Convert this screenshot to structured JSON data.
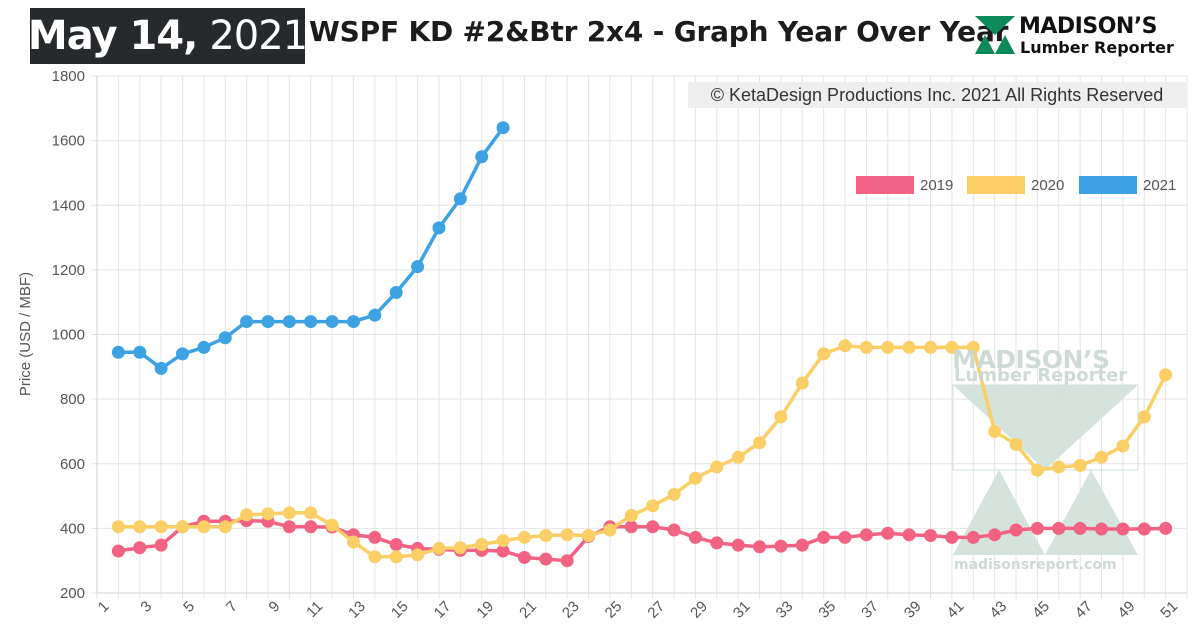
{
  "header": {
    "date_month_day": "May 14,",
    "date_year": "2021",
    "title": "WSPF KD #2&Btr 2x4 - Graph Year Over Year",
    "logo_name": "MADISON’S",
    "logo_sub": "Lumber Reporter"
  },
  "copyright": "© KetaDesign Productions Inc. 2021 All Rights Reserved",
  "watermark": {
    "name": "MADISON’S",
    "sub": "Lumber Reporter",
    "url": "madisonsreport.com"
  },
  "colors": {
    "2019": "#f36282",
    "2020": "#fbcf65",
    "2021": "#3da2e4",
    "grid": "#e4e4e4",
    "watermark": "#cfe0d8"
  },
  "chart_data": {
    "type": "line",
    "ylabel": "Price (USD / MBF)",
    "xlabel": "",
    "ylim": [
      200,
      1800
    ],
    "yticks": [
      200,
      400,
      600,
      800,
      1000,
      1200,
      1400,
      1600,
      1800
    ],
    "xlim": [
      1,
      52
    ],
    "xticks": [
      1,
      3,
      5,
      7,
      9,
      11,
      13,
      15,
      17,
      19,
      21,
      23,
      25,
      27,
      29,
      31,
      33,
      35,
      37,
      39,
      41,
      43,
      45,
      47,
      49,
      51
    ],
    "grid": true,
    "legend_position": "top-right",
    "series": [
      {
        "name": "2019",
        "x": [
          2,
          3,
          4,
          5,
          6,
          7,
          8,
          9,
          10,
          11,
          12,
          13,
          14,
          15,
          16,
          17,
          18,
          19,
          20,
          21,
          22,
          23,
          24,
          25,
          26,
          27,
          28,
          29,
          30,
          31,
          32,
          33,
          34,
          35,
          36,
          37,
          38,
          39,
          40,
          41,
          42,
          43,
          44,
          45,
          46,
          47,
          48,
          49,
          50,
          51
        ],
        "values": [
          330,
          340,
          348,
          405,
          422,
          422,
          424,
          422,
          405,
          405,
          404,
          380,
          372,
          350,
          338,
          335,
          332,
          332,
          330,
          310,
          305,
          300,
          375,
          405,
          405,
          405,
          395,
          372,
          355,
          348,
          343,
          345,
          348,
          372,
          372,
          380,
          385,
          380,
          378,
          372,
          372,
          380,
          395,
          400,
          400,
          400,
          398,
          398,
          398,
          400
        ]
      },
      {
        "name": "2020",
        "x": [
          2,
          3,
          4,
          5,
          6,
          7,
          8,
          9,
          10,
          11,
          12,
          13,
          14,
          15,
          16,
          17,
          18,
          19,
          20,
          21,
          22,
          23,
          24,
          25,
          26,
          27,
          28,
          29,
          30,
          31,
          32,
          33,
          34,
          35,
          36,
          37,
          38,
          39,
          40,
          41,
          42,
          43,
          44,
          45,
          46,
          47,
          48,
          49,
          50,
          51
        ],
        "values": [
          405,
          405,
          405,
          405,
          405,
          405,
          442,
          445,
          448,
          448,
          410,
          358,
          312,
          312,
          318,
          338,
          340,
          350,
          362,
          372,
          378,
          380,
          378,
          395,
          440,
          470,
          505,
          555,
          590,
          620,
          665,
          745,
          850,
          940,
          965,
          960,
          960,
          960,
          960,
          960,
          960,
          700,
          660,
          580,
          590,
          595,
          620,
          655,
          745,
          875
        ]
      },
      {
        "name": "2021",
        "x": [
          2,
          3,
          4,
          5,
          6,
          7,
          8,
          9,
          10,
          11,
          12,
          13,
          14,
          15,
          16,
          17,
          18,
          19,
          20
        ],
        "values": [
          945,
          945,
          895,
          940,
          960,
          990,
          1040,
          1040,
          1040,
          1040,
          1040,
          1040,
          1060,
          1130,
          1210,
          1330,
          1420,
          1550,
          1640
        ]
      }
    ]
  }
}
